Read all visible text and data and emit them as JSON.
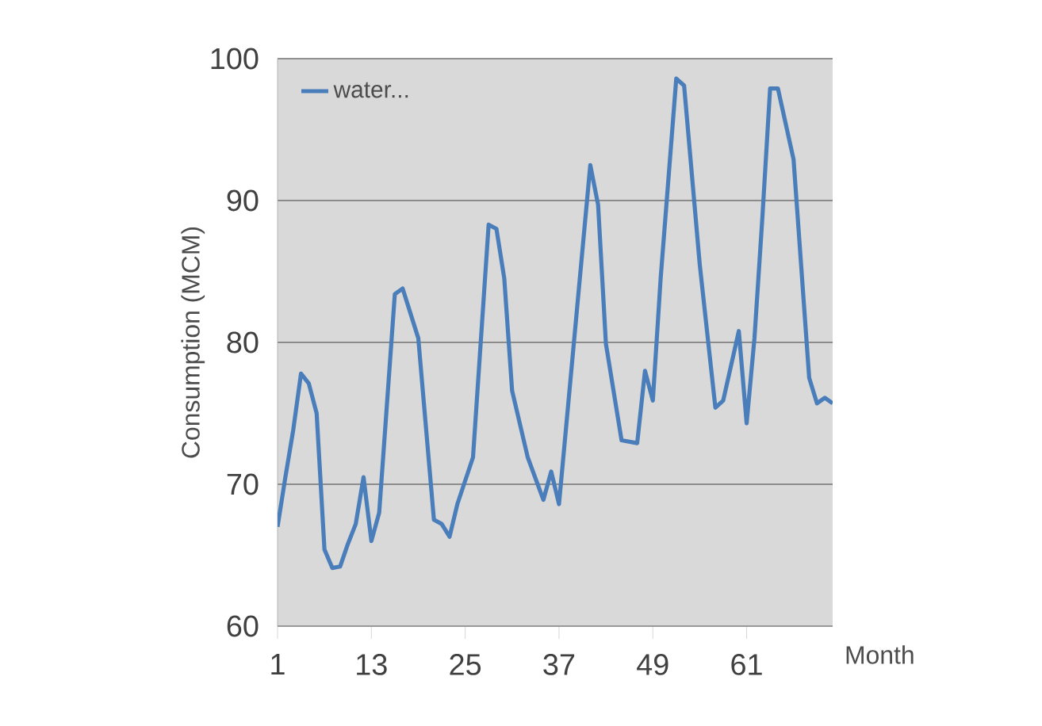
{
  "chart_data": {
    "type": "line",
    "xlabel": "Month",
    "ylabel": "Consumption (MCM)",
    "xlim": [
      1,
      72
    ],
    "xticks": [
      1,
      13,
      25,
      37,
      49,
      61
    ],
    "ylim": [
      60,
      100
    ],
    "yticks": [
      60,
      70,
      80,
      90,
      100
    ],
    "grid": "y",
    "legend": "top left",
    "line_style": "solid",
    "marker": "none",
    "series": [
      {
        "name": "water...",
        "color": "#4a7ebb",
        "x": [
          1,
          2,
          3,
          4,
          5,
          6,
          7,
          8,
          9,
          10,
          11,
          12,
          13,
          14,
          16,
          17,
          19,
          21,
          22,
          23,
          24,
          26,
          28,
          29,
          30,
          31,
          33,
          35,
          36,
          37,
          41,
          42,
          43,
          45,
          47,
          48,
          49,
          50,
          52,
          53,
          55,
          57,
          58,
          60,
          61,
          62,
          63,
          64,
          65,
          67,
          69,
          70,
          71,
          72
        ],
        "values": [
          67.0,
          70.5,
          73.8,
          77.8,
          77.1,
          75.0,
          65.4,
          64.1,
          64.2,
          65.8,
          67.2,
          70.5,
          66.0,
          68.0,
          83.4,
          83.8,
          80.3,
          67.5,
          67.2,
          66.3,
          68.6,
          71.9,
          88.3,
          88.0,
          84.5,
          76.6,
          71.9,
          68.9,
          70.9,
          68.6,
          92.5,
          89.7,
          79.9,
          73.1,
          72.9,
          78.0,
          75.9,
          84.5,
          98.6,
          98.1,
          85.5,
          75.4,
          75.9,
          80.8,
          74.3,
          80.3,
          88.7,
          97.9,
          97.9,
          92.9,
          77.5,
          75.7,
          76.1,
          75.7
        ]
      }
    ]
  }
}
